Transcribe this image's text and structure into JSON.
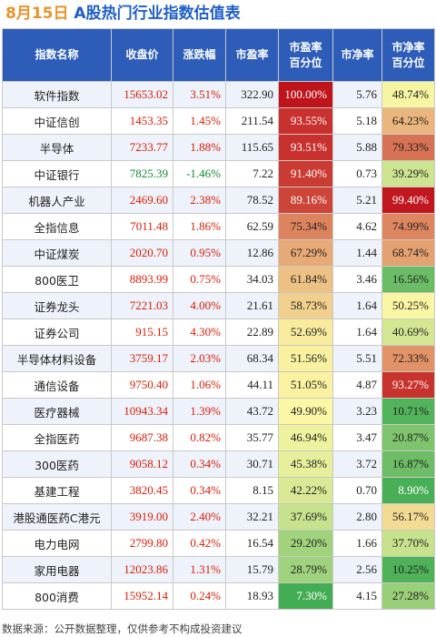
{
  "header": {
    "date": "8月15日",
    "title": "A股热门行业指数估值表"
  },
  "table": {
    "columns": [
      {
        "line1": "指数名称",
        "line2": ""
      },
      {
        "line1": "收盘价",
        "line2": ""
      },
      {
        "line1": "涨跌幅",
        "line2": ""
      },
      {
        "line1": "市盈率",
        "line2": ""
      },
      {
        "line1": "市盈率",
        "line2": "百分位"
      },
      {
        "line1": "市净率",
        "line2": ""
      },
      {
        "line1": "市净率",
        "line2": "百分位"
      }
    ],
    "rows": [
      {
        "name": "软件指数",
        "close": "15653.02",
        "change": "3.51%",
        "dir": "up",
        "pe": "322.90",
        "pe_pct": "100.00%",
        "pe_pct_val": 100.0,
        "pb": "5.76",
        "pb_pct": "48.74%",
        "pb_pct_val": 48.74
      },
      {
        "name": "中证信创",
        "close": "1453.35",
        "change": "1.45%",
        "dir": "up",
        "pe": "211.54",
        "pe_pct": "93.55%",
        "pe_pct_val": 93.55,
        "pb": "5.18",
        "pb_pct": "64.23%",
        "pb_pct_val": 64.23
      },
      {
        "name": "半导体",
        "close": "7233.77",
        "change": "1.88%",
        "dir": "up",
        "pe": "115.65",
        "pe_pct": "93.51%",
        "pe_pct_val": 93.51,
        "pb": "5.88",
        "pb_pct": "79.33%",
        "pb_pct_val": 79.33
      },
      {
        "name": "中证银行",
        "close": "7825.39",
        "change": "-1.46%",
        "dir": "down",
        "pe": "7.22",
        "pe_pct": "91.40%",
        "pe_pct_val": 91.4,
        "pb": "0.73",
        "pb_pct": "39.29%",
        "pb_pct_val": 39.29
      },
      {
        "name": "机器人产业",
        "close": "2469.60",
        "change": "2.38%",
        "dir": "up",
        "pe": "78.52",
        "pe_pct": "89.16%",
        "pe_pct_val": 89.16,
        "pb": "5.21",
        "pb_pct": "99.40%",
        "pb_pct_val": 99.4
      },
      {
        "name": "全指信息",
        "close": "7011.48",
        "change": "1.86%",
        "dir": "up",
        "pe": "62.59",
        "pe_pct": "75.34%",
        "pe_pct_val": 75.34,
        "pb": "4.62",
        "pb_pct": "74.99%",
        "pb_pct_val": 74.99
      },
      {
        "name": "中证煤炭",
        "close": "2020.70",
        "change": "0.95%",
        "dir": "up",
        "pe": "12.86",
        "pe_pct": "67.29%",
        "pe_pct_val": 67.29,
        "pb": "1.44",
        "pb_pct": "68.74%",
        "pb_pct_val": 68.74
      },
      {
        "name": "800医卫",
        "close": "8893.99",
        "change": "0.75%",
        "dir": "up",
        "pe": "34.03",
        "pe_pct": "61.84%",
        "pe_pct_val": 61.84,
        "pb": "3.46",
        "pb_pct": "16.56%",
        "pb_pct_val": 16.56
      },
      {
        "name": "证券龙头",
        "close": "7221.03",
        "change": "4.00%",
        "dir": "up",
        "pe": "21.61",
        "pe_pct": "58.73%",
        "pe_pct_val": 58.73,
        "pb": "1.64",
        "pb_pct": "50.25%",
        "pb_pct_val": 50.25
      },
      {
        "name": "证券公司",
        "close": "915.15",
        "change": "4.30%",
        "dir": "up",
        "pe": "22.89",
        "pe_pct": "52.69%",
        "pe_pct_val": 52.69,
        "pb": "1.64",
        "pb_pct": "40.69%",
        "pb_pct_val": 40.69
      },
      {
        "name": "半导体材料设备",
        "close": "3759.17",
        "change": "2.03%",
        "dir": "up",
        "pe": "68.34",
        "pe_pct": "51.56%",
        "pe_pct_val": 51.56,
        "pb": "5.51",
        "pb_pct": "72.33%",
        "pb_pct_val": 72.33
      },
      {
        "name": "通信设备",
        "close": "9750.40",
        "change": "1.06%",
        "dir": "up",
        "pe": "44.11",
        "pe_pct": "51.05%",
        "pe_pct_val": 51.05,
        "pb": "4.87",
        "pb_pct": "93.27%",
        "pb_pct_val": 93.27
      },
      {
        "name": "医疗器械",
        "close": "10943.34",
        "change": "1.39%",
        "dir": "up",
        "pe": "43.72",
        "pe_pct": "49.90%",
        "pe_pct_val": 49.9,
        "pb": "3.23",
        "pb_pct": "10.71%",
        "pb_pct_val": 10.71
      },
      {
        "name": "全指医药",
        "close": "9687.38",
        "change": "0.82%",
        "dir": "up",
        "pe": "35.77",
        "pe_pct": "46.94%",
        "pe_pct_val": 46.94,
        "pb": "3.47",
        "pb_pct": "20.87%",
        "pb_pct_val": 20.87
      },
      {
        "name": "300医药",
        "close": "9058.12",
        "change": "0.34%",
        "dir": "up",
        "pe": "30.71",
        "pe_pct": "45.38%",
        "pe_pct_val": 45.38,
        "pb": "3.72",
        "pb_pct": "16.87%",
        "pb_pct_val": 16.87
      },
      {
        "name": "基建工程",
        "close": "3820.45",
        "change": "0.34%",
        "dir": "up",
        "pe": "8.15",
        "pe_pct": "42.22%",
        "pe_pct_val": 42.22,
        "pb": "0.70",
        "pb_pct": "8.90%",
        "pb_pct_val": 8.9
      },
      {
        "name": "港股通医药C港元",
        "close": "3919.00",
        "change": "2.40%",
        "dir": "up",
        "pe": "32.21",
        "pe_pct": "37.69%",
        "pe_pct_val": 37.69,
        "pb": "2.80",
        "pb_pct": "56.17%",
        "pb_pct_val": 56.17
      },
      {
        "name": "电力电网",
        "close": "2799.80",
        "change": "0.42%",
        "dir": "up",
        "pe": "16.54",
        "pe_pct": "29.20%",
        "pe_pct_val": 29.2,
        "pb": "1.66",
        "pb_pct": "37.70%",
        "pb_pct_val": 37.7
      },
      {
        "name": "家用电器",
        "close": "12023.86",
        "change": "1.31%",
        "dir": "up",
        "pe": "15.79",
        "pe_pct": "28.79%",
        "pe_pct_val": 28.79,
        "pb": "2.56",
        "pb_pct": "10.25%",
        "pb_pct_val": 10.25
      },
      {
        "name": "800消费",
        "close": "15952.14",
        "change": "0.24%",
        "dir": "up",
        "pe": "18.93",
        "pe_pct": "7.30%",
        "pe_pct_val": 7.3,
        "pb": "4.15",
        "pb_pct": "27.28%",
        "pb_pct_val": 27.28
      }
    ]
  },
  "colors": {
    "header_bg": "#2e5db9",
    "title_date": "#e8932a",
    "title_main": "#1f5fc7",
    "up": "#d81e06",
    "down": "#138a36",
    "scale_high": "#c0141c",
    "scale_mid": "#fbf7a4",
    "scale_low": "#23a046"
  },
  "footer": {
    "text": "数据来源：公开数据整理，仅供参考不构成投资建议"
  }
}
